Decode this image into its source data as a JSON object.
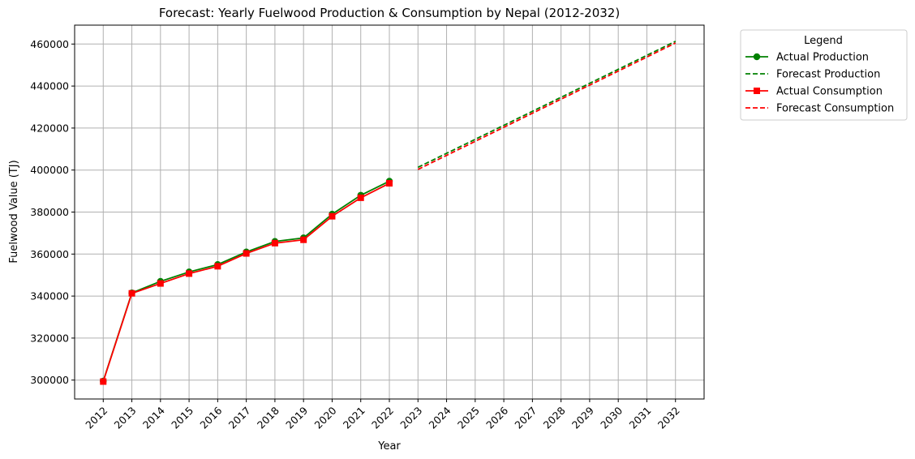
{
  "chart_data": {
    "type": "line",
    "title": "Forecast: Yearly Fuelwood Production & Consumption by Nepal (2012-2032)",
    "xlabel": "Year",
    "ylabel": "Fuelwood Value (TJ)",
    "x_ticks": [
      "2012",
      "2013",
      "2014",
      "2015",
      "2016",
      "2017",
      "2018",
      "2019",
      "2020",
      "2021",
      "2022",
      "2023",
      "2024",
      "2025",
      "2026",
      "2027",
      "2028",
      "2029",
      "2030",
      "2031",
      "2032"
    ],
    "y_ticks": [
      300000,
      320000,
      340000,
      360000,
      380000,
      400000,
      420000,
      440000,
      460000
    ],
    "xlim": [
      2011,
      2033
    ],
    "ylim": [
      291000,
      469000
    ],
    "grid": true,
    "legend": {
      "title": "Legend",
      "placement": "outside-top-right"
    },
    "series": [
      {
        "name": "Actual Production",
        "color": "#008000",
        "style": "solid",
        "marker": "circle",
        "x": [
          2012,
          2013,
          2014,
          2015,
          2016,
          2017,
          2018,
          2019,
          2020,
          2021,
          2022
        ],
        "values": [
          299500,
          341500,
          347000,
          351500,
          355000,
          361000,
          366000,
          367700,
          379000,
          388000,
          394700
        ]
      },
      {
        "name": "Forecast Production",
        "color": "#008000",
        "style": "dashed",
        "marker": "none",
        "x": [
          2023,
          2032
        ],
        "values": [
          401300,
          461300
        ]
      },
      {
        "name": "Actual Consumption",
        "color": "#ff0000",
        "style": "solid",
        "marker": "square",
        "x": [
          2012,
          2013,
          2014,
          2015,
          2016,
          2017,
          2018,
          2019,
          2020,
          2021,
          2022
        ],
        "values": [
          299300,
          341300,
          346000,
          350700,
          354200,
          360300,
          365200,
          366800,
          378000,
          386800,
          393700
        ]
      },
      {
        "name": "Forecast Consumption",
        "color": "#ff0000",
        "style": "dashed",
        "marker": "none",
        "x": [
          2023,
          2032
        ],
        "values": [
          400300,
          460500
        ]
      }
    ]
  }
}
